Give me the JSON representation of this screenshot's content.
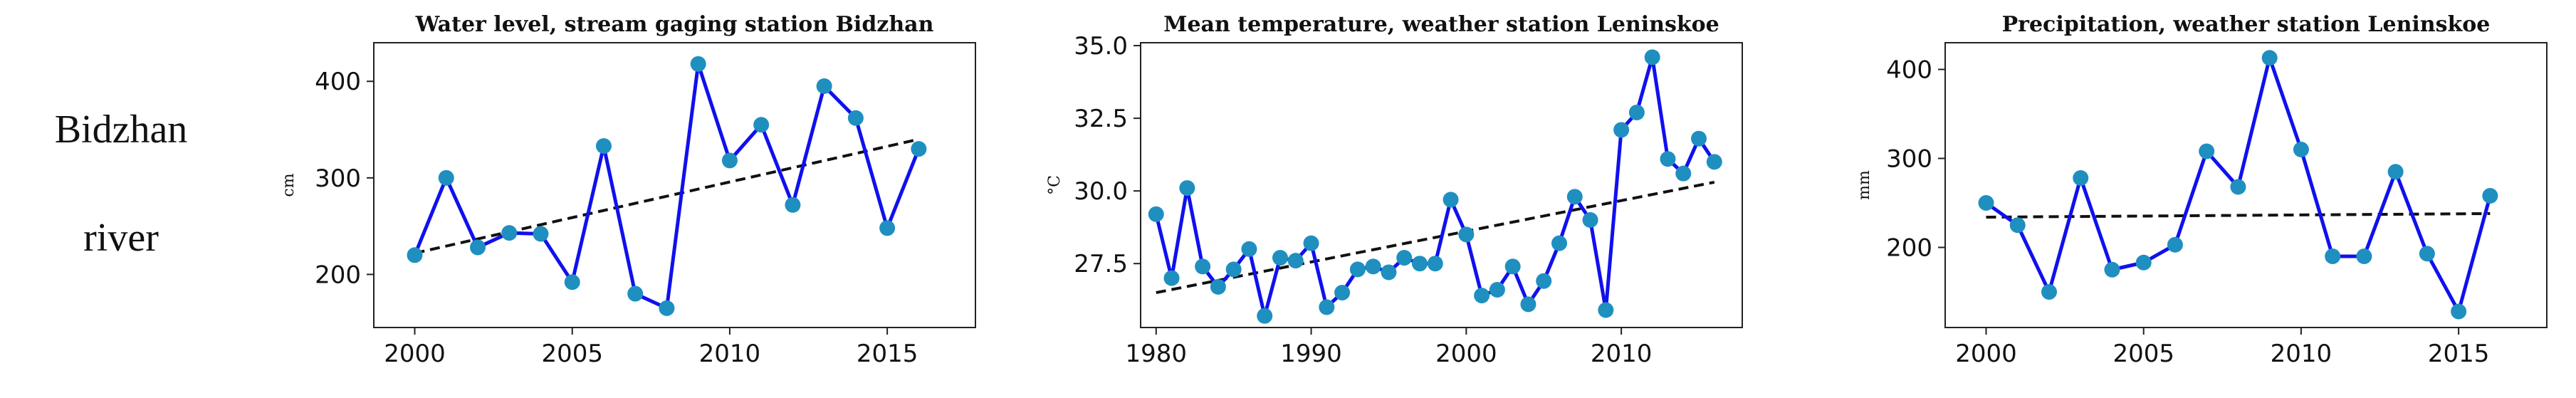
{
  "row_label": {
    "line1": "Bidzhan",
    "line2": "river"
  },
  "colors": {
    "series": "#1010ee",
    "markers": "#1f8fc0",
    "trend": "#111111"
  },
  "chart_data": [
    {
      "type": "line",
      "title": "Water level, stream gaging station Bidzhan",
      "xlabel": "",
      "ylabel": "cm",
      "x": [
        2000,
        2001,
        2002,
        2003,
        2004,
        2005,
        2006,
        2007,
        2008,
        2009,
        2010,
        2011,
        2012,
        2013,
        2014,
        2015,
        2016
      ],
      "values": [
        220,
        300,
        228,
        243,
        242,
        192,
        333,
        180,
        165,
        418,
        318,
        355,
        272,
        395,
        362,
        248,
        330
      ],
      "trend": {
        "x": [
          2000,
          2016
        ],
        "y": [
          222,
          340
        ]
      },
      "xlim": [
        1998.7,
        2017.8
      ],
      "ylim": [
        145,
        440
      ],
      "xticks": [
        2000,
        2005,
        2010,
        2015
      ],
      "yticks": [
        200,
        300,
        400
      ],
      "grid": false
    },
    {
      "type": "line",
      "title": "Mean temperature, weather station Leninskoe",
      "xlabel": "",
      "ylabel": "°C",
      "x": [
        1980,
        1981,
        1982,
        1983,
        1984,
        1985,
        1986,
        1987,
        1988,
        1989,
        1990,
        1991,
        1992,
        1993,
        1994,
        1995,
        1996,
        1997,
        1998,
        1999,
        2000,
        2001,
        2002,
        2003,
        2004,
        2005,
        2006,
        2007,
        2008,
        2009,
        2010,
        2011,
        2012,
        2013,
        2014,
        2015,
        2016
      ],
      "values": [
        29.2,
        27.0,
        30.1,
        27.4,
        26.7,
        27.3,
        28.0,
        25.7,
        27.7,
        27.6,
        28.2,
        26.0,
        26.5,
        27.3,
        27.4,
        27.2,
        27.7,
        27.5,
        27.5,
        29.7,
        28.5,
        26.4,
        26.6,
        27.4,
        26.1,
        26.9,
        28.2,
        29.8,
        29.0,
        25.9,
        32.1,
        32.7,
        34.6,
        31.1,
        30.6,
        31.8,
        31.0
      ],
      "trend": {
        "x": [
          1980,
          2016
        ],
        "y": [
          26.5,
          30.3
        ]
      },
      "xlim": [
        1979,
        2017.8
      ],
      "ylim": [
        25.3,
        35.1
      ],
      "xticks": [
        1980,
        1990,
        2000,
        2010
      ],
      "yticks": [
        27.5,
        30.0,
        32.5,
        35.0
      ],
      "ytick_labels": [
        "27.5",
        "30.0",
        "32.5",
        "35.0"
      ],
      "grid": false
    },
    {
      "type": "line",
      "title": "Precipitation, weather station Leninskoe",
      "xlabel": "",
      "ylabel": "mm",
      "x": [
        2000,
        2001,
        2002,
        2003,
        2004,
        2005,
        2006,
        2007,
        2008,
        2009,
        2010,
        2011,
        2012,
        2013,
        2014,
        2015,
        2016
      ],
      "values": [
        250,
        225,
        150,
        278,
        175,
        183,
        203,
        308,
        268,
        413,
        310,
        190,
        190,
        285,
        193,
        128,
        258
      ],
      "trend": {
        "x": [
          2000,
          2016
        ],
        "y": [
          234,
          238
        ]
      },
      "xlim": [
        1998.7,
        2017.8
      ],
      "ylim": [
        110,
        430
      ],
      "xticks": [
        2000,
        2005,
        2010,
        2015
      ],
      "yticks": [
        200,
        300,
        400
      ],
      "grid": false
    }
  ]
}
